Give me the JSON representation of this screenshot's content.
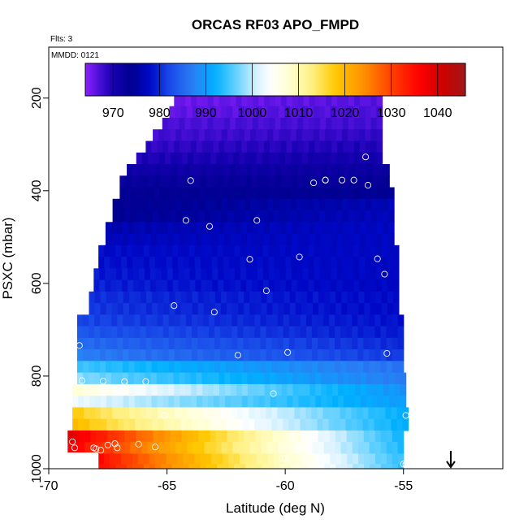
{
  "chart_data": {
    "type": "heatmap",
    "title": "ORCAS RF03 APO_FMPD",
    "notes": {
      "flights": "Flts: 3",
      "date": "MMDD: 0121"
    },
    "xlabel": "Latitude (deg N)",
    "ylabel": "PSXC (mbar)",
    "xlim": [
      -70,
      -50.8
    ],
    "ylim": [
      1000,
      90
    ],
    "y_reversed": true,
    "xticks": [
      -70,
      -65,
      -60,
      -55
    ],
    "xtick_labels": [
      "-70",
      "-65",
      "-60",
      "-55"
    ],
    "yticks": [
      200,
      400,
      600,
      800,
      1000
    ],
    "ytick_labels": [
      "200",
      "400",
      "600",
      "800",
      "1000"
    ],
    "colorbar": {
      "range": [
        964,
        1046
      ],
      "ticks": [
        970,
        980,
        990,
        1000,
        1010,
        1020,
        1030,
        1040
      ],
      "tick_labels": [
        "970",
        "980",
        "990",
        "1000",
        "1010",
        "1020",
        "1030",
        "1040"
      ],
      "stops": [
        {
          "v": 964,
          "c": "#8f1fff"
        },
        {
          "v": 967,
          "c": "#4a10d8"
        },
        {
          "v": 970,
          "c": "#1500b0"
        },
        {
          "v": 974,
          "c": "#000090"
        },
        {
          "v": 978,
          "c": "#0008c8"
        },
        {
          "v": 982,
          "c": "#1848e8"
        },
        {
          "v": 987,
          "c": "#2a7cf4"
        },
        {
          "v": 992,
          "c": "#00b0ff"
        },
        {
          "v": 997,
          "c": "#70d4ff"
        },
        {
          "v": 1001,
          "c": "#d8f2ff"
        },
        {
          "v": 1004,
          "c": "#ffffff"
        },
        {
          "v": 1008,
          "c": "#ffffd0"
        },
        {
          "v": 1013,
          "c": "#fff080"
        },
        {
          "v": 1018,
          "c": "#ffc800"
        },
        {
          "v": 1024,
          "c": "#ff9000"
        },
        {
          "v": 1030,
          "c": "#ff4000"
        },
        {
          "v": 1036,
          "c": "#ff0000"
        },
        {
          "v": 1041,
          "c": "#d00000"
        },
        {
          "v": 1046,
          "c": "#a01818"
        }
      ]
    },
    "rows": [
      {
        "p": 180,
        "x0": -64.5,
        "x1": -55.9,
        "v0": 964.5,
        "v1": 965.5
      },
      {
        "p": 205,
        "x0": -64.7,
        "x1": -55.9,
        "v0": 965.5,
        "v1": 966.5
      },
      {
        "p": 230,
        "x0": -64.9,
        "x1": -55.9,
        "v0": 966,
        "v1": 967
      },
      {
        "p": 255,
        "x0": -65.2,
        "x1": -55.9,
        "v0": 967,
        "v1": 967.5
      },
      {
        "p": 280,
        "x0": -65.6,
        "x1": -55.9,
        "v0": 967.5,
        "v1": 968.5
      },
      {
        "p": 305,
        "x0": -65.9,
        "x1": -55.9,
        "v0": 968.5,
        "v1": 969.5
      },
      {
        "p": 330,
        "x0": -66.3,
        "x1": -55.9,
        "v0": 969.5,
        "v1": 970.5
      },
      {
        "p": 355,
        "x0": -66.7,
        "x1": -55.6,
        "v0": 971,
        "v1": 972
      },
      {
        "p": 380,
        "x0": -67.0,
        "x1": -55.6,
        "v0": 972.5,
        "v1": 973
      },
      {
        "p": 405,
        "x0": -67.0,
        "x1": -55.4,
        "v0": 973.5,
        "v1": 974
      },
      {
        "p": 430,
        "x0": -67.3,
        "x1": -55.4,
        "v0": 973.5,
        "v1": 976.5
      },
      {
        "p": 455,
        "x0": -67.3,
        "x1": -55.4,
        "v0": 974,
        "v1": 977
      },
      {
        "p": 480,
        "x0": -67.6,
        "x1": -55.4,
        "v0": 976,
        "v1": 977.5
      },
      {
        "p": 505,
        "x0": -67.6,
        "x1": -55.4,
        "v0": 977,
        "v1": 977.5
      },
      {
        "p": 530,
        "x0": -67.9,
        "x1": -55.2,
        "v0": 978,
        "v1": 977.5
      },
      {
        "p": 555,
        "x0": -67.9,
        "x1": -55.2,
        "v0": 978.5,
        "v1": 977.5
      },
      {
        "p": 580,
        "x0": -68.1,
        "x1": -55.2,
        "v0": 979,
        "v1": 977.5
      },
      {
        "p": 605,
        "x0": -68.1,
        "x1": -55.2,
        "v0": 979.5,
        "v1": 977.5
      },
      {
        "p": 630,
        "x0": -68.3,
        "x1": -55.2,
        "v0": 980.5,
        "v1": 978
      },
      {
        "p": 655,
        "x0": -68.3,
        "x1": -55.2,
        "v0": 981,
        "v1": 978
      },
      {
        "p": 680,
        "x0": -68.8,
        "x1": -55.0,
        "v0": 982,
        "v1": 978.5
      },
      {
        "p": 705,
        "x0": -68.8,
        "x1": -55.0,
        "v0": 983.5,
        "v1": 979
      },
      {
        "p": 730,
        "x0": -68.8,
        "x1": -55.0,
        "v0": 985.5,
        "v1": 980
      },
      {
        "p": 755,
        "x0": -68.8,
        "x1": -55.0,
        "v0": 987.5,
        "v1": 981
      },
      {
        "p": 780,
        "x0": -68.8,
        "x1": -55.0,
        "v0": 995,
        "v1": 986
      },
      {
        "p": 805,
        "x0": -68.8,
        "x1": -54.9,
        "v0": 998,
        "v1": 987
      },
      {
        "p": 830,
        "x0": -69.0,
        "x1": -54.9,
        "v0": 1008,
        "v1": 989
      },
      {
        "p": 855,
        "x0": -69.0,
        "x1": -54.9,
        "v0": 1003,
        "v1": 990
      },
      {
        "p": 880,
        "x0": -69.0,
        "x1": -54.8,
        "v0": 1018,
        "v1": 991.5
      },
      {
        "p": 905,
        "x0": -69.0,
        "x1": -54.8,
        "v0": 1020,
        "v1": 991.5
      },
      {
        "p": 930,
        "x0": -69.2,
        "x1": -55.0,
        "v0": 1040,
        "v1": 992.5
      },
      {
        "p": 955,
        "x0": -69.2,
        "x1": -55.0,
        "v0": 1038,
        "v1": 993
      },
      {
        "p": 980,
        "x0": -67.9,
        "x1": -55.0,
        "v0": 1036,
        "v1": 994
      },
      {
        "p": 1000,
        "x0": -67.9,
        "x1": -55.0,
        "v0": 1036,
        "v1": 994
      }
    ],
    "blank_corner": {
      "x0": -69.2,
      "x1": -67.9,
      "p0": 965,
      "p1": 1000
    },
    "points": [
      [
        -64.5,
        180
      ],
      [
        -61.9,
        180
      ],
      [
        -58.4,
        180
      ],
      [
        -57.9,
        180
      ],
      [
        -57.8,
        181
      ],
      [
        -57.2,
        180
      ],
      [
        -56.0,
        180
      ],
      [
        -56.6,
        327
      ],
      [
        -64.0,
        378
      ],
      [
        -58.8,
        383
      ],
      [
        -58.3,
        377
      ],
      [
        -58.3,
        377
      ],
      [
        -57.6,
        377
      ],
      [
        -57.1,
        377
      ],
      [
        -56.5,
        388
      ],
      [
        -64.2,
        464
      ],
      [
        -63.2,
        477
      ],
      [
        -61.2,
        464
      ],
      [
        -61.5,
        548
      ],
      [
        -59.4,
        543
      ],
      [
        -56.1,
        547
      ],
      [
        -55.8,
        580
      ],
      [
        -60.8,
        616
      ],
      [
        -64.7,
        648
      ],
      [
        -63.0,
        662
      ],
      [
        -68.7,
        734
      ],
      [
        -62.0,
        755
      ],
      [
        -59.9,
        749
      ],
      [
        -55.7,
        751
      ],
      [
        -68.6,
        810
      ],
      [
        -67.7,
        811
      ],
      [
        -66.8,
        812
      ],
      [
        -65.9,
        812
      ],
      [
        -60.5,
        838
      ],
      [
        -68.6,
        827
      ],
      [
        -65.1,
        885
      ],
      [
        -62.9,
        899
      ],
      [
        -54.9,
        885
      ],
      [
        -69.0,
        942
      ],
      [
        -68.9,
        955
      ],
      [
        -67.5,
        949
      ],
      [
        -67.2,
        946
      ],
      [
        -66.2,
        947
      ],
      [
        -65.5,
        953
      ],
      [
        -68.1,
        955
      ],
      [
        -68.0,
        957
      ],
      [
        -67.8,
        960
      ],
      [
        -67.1,
        955
      ],
      [
        -60.1,
        978
      ],
      [
        -60.0,
        978
      ],
      [
        -55.0,
        990
      ],
      [
        -54.9,
        991
      ]
    ],
    "arrow": {
      "x": -53.0,
      "direction": "down"
    }
  }
}
